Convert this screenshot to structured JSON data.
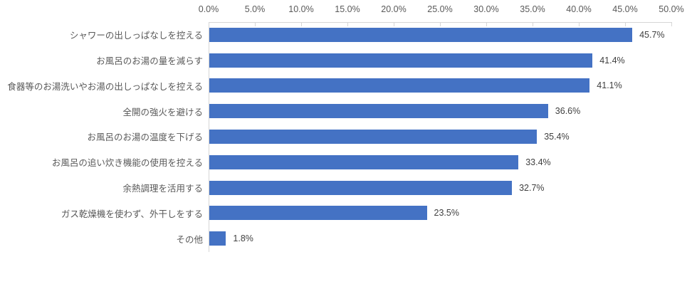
{
  "chart_data": {
    "type": "bar",
    "orientation": "horizontal",
    "title": "",
    "categories": [
      "シャワーの出しっぱなしを控える",
      "お風呂のお湯の量を減らす",
      "食器等のお湯洗いやお湯の出しっぱなしを控える",
      "全開の強火を避ける",
      "お風呂のお湯の温度を下げる",
      "お風呂の追い炊き機能の使用を控える",
      "余熱調理を活用する",
      "ガス乾燥機を使わず、外干しをする",
      "その他"
    ],
    "values": [
      45.7,
      41.4,
      41.1,
      36.6,
      35.4,
      33.4,
      32.7,
      23.5,
      1.8
    ],
    "value_labels": [
      "45.7%",
      "41.4%",
      "41.1%",
      "36.6%",
      "35.4%",
      "33.4%",
      "32.7%",
      "23.5%",
      "1.8%"
    ],
    "xlabel": "",
    "ylabel": "",
    "x_axis": {
      "position": "top",
      "min": 0,
      "max": 50,
      "step": 5,
      "ticks": [
        "0.0%",
        "5.0%",
        "10.0%",
        "15.0%",
        "20.0%",
        "25.0%",
        "30.0%",
        "35.0%",
        "40.0%",
        "45.0%",
        "50.0%"
      ]
    },
    "grid": false,
    "legend": false,
    "colors": {
      "bar": "#4472C4",
      "axis_line": "#d6d6d6",
      "tick_text": "#595959",
      "category_text": "#595959",
      "value_text": "#404040",
      "background": "#ffffff"
    }
  }
}
